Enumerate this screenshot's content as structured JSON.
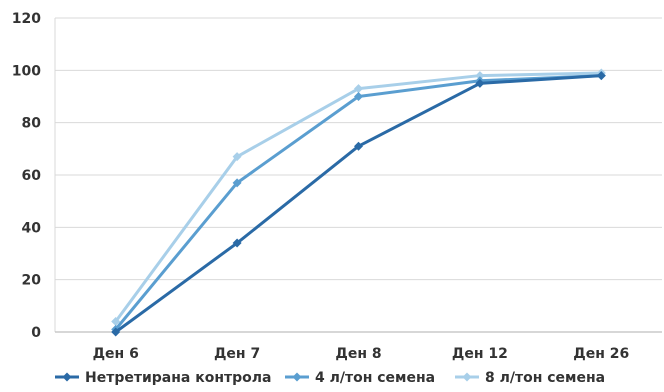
{
  "chart_data": {
    "type": "line",
    "categories": [
      "Ден 6",
      "Ден 7",
      "Ден 8",
      "Ден 12",
      "Ден 26"
    ],
    "ylim": [
      0,
      120
    ],
    "yticks": [
      0,
      20,
      40,
      60,
      80,
      100,
      120
    ],
    "grid": true,
    "legend_position": "bottom",
    "series": [
      {
        "name": "Нетретирана контрола",
        "color": "#2a6aa6",
        "values": [
          0,
          34,
          71,
          95,
          98
        ]
      },
      {
        "name": "4 л/тон семена",
        "color": "#5a9ed0",
        "values": [
          1,
          57,
          90,
          96,
          98
        ]
      },
      {
        "name": "8 л/тон семена",
        "color": "#a8cfe9",
        "values": [
          4,
          67,
          93,
          98,
          99
        ]
      }
    ]
  }
}
